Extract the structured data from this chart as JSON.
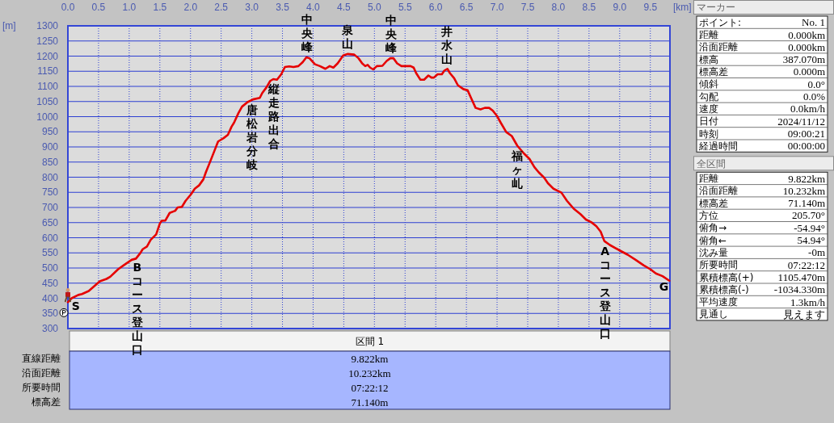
{
  "chart_data": [
    {
      "type": "line",
      "xlabel": "[km]",
      "ylabel": "[m]",
      "xlim": [
        0,
        9.82
      ],
      "ylim": [
        300,
        1300
      ],
      "xticks": [
        {
          "value": 0,
          "label": "0.0"
        },
        0.5,
        {
          "value": 1,
          "label": "1.0"
        },
        1.5,
        {
          "value": 2,
          "label": "2.0"
        },
        2.5,
        {
          "value": 3,
          "label": "3.0"
        },
        3.5,
        {
          "value": 4,
          "label": "4.0"
        },
        4.5,
        {
          "value": 5,
          "label": "5.0"
        },
        5.5,
        {
          "value": 6,
          "label": "6.0"
        },
        6.5,
        {
          "value": 7,
          "label": "7.0"
        },
        7.5,
        {
          "value": 8,
          "label": "8.0"
        },
        8.5,
        {
          "value": 9,
          "label": "9.0"
        },
        9.5
      ],
      "yticks": [
        300,
        350,
        400,
        450,
        500,
        550,
        600,
        650,
        700,
        750,
        800,
        850,
        900,
        950,
        1000,
        1050,
        1100,
        1150,
        1200,
        1250,
        1300
      ],
      "grid": true,
      "line_style": "solid",
      "x": [
        0,
        0.06,
        0.17,
        0.23,
        0.34,
        0.52,
        0.63,
        0.69,
        0.82,
        0.91,
        1.04,
        1.11,
        1.18,
        1.22,
        1.29,
        1.35,
        1.44,
        1.5,
        1.53,
        1.59,
        1.66,
        1.75,
        1.79,
        1.86,
        1.92,
        2.01,
        2.07,
        2.14,
        2.21,
        2.25,
        2.32,
        2.39,
        2.45,
        2.54,
        2.61,
        2.67,
        2.71,
        2.78,
        2.84,
        2.93,
        3.02,
        3.13,
        3.17,
        3.24,
        3.3,
        3.35,
        3.41,
        3.48,
        3.54,
        3.61,
        3.68,
        3.76,
        3.83,
        3.89,
        3.94,
        4.03,
        4.11,
        4.2,
        4.27,
        4.33,
        4.4,
        4.49,
        4.56,
        4.67,
        4.74,
        4.8,
        4.85,
        4.89,
        4.93,
        4.98,
        5.04,
        5.13,
        5.2,
        5.26,
        5.31,
        5.37,
        5.44,
        5.53,
        5.59,
        5.64,
        5.68,
        5.75,
        5.81,
        5.88,
        5.93,
        5.97,
        6.03,
        6.1,
        6.14,
        6.19,
        6.23,
        6.3,
        6.36,
        6.45,
        6.52,
        6.58,
        6.65,
        6.73,
        6.8,
        6.87,
        6.93,
        7,
        7.06,
        7.15,
        7.24,
        7.33,
        7.44,
        7.53,
        7.61,
        7.68,
        7.77,
        7.83,
        7.92,
        8.01,
        8.05,
        8.14,
        8.25,
        8.36,
        8.45,
        8.54,
        8.62,
        8.69,
        8.75,
        8.84,
        9,
        9.13,
        9.26,
        9.39,
        9.5,
        9.59,
        9.7,
        9.81
      ],
      "series": [
        {
          "color": "#e60000",
          "values": [
            387,
            400,
            411,
            414,
            424,
            456,
            464,
            471,
            496,
            509,
            527,
            531,
            549,
            562,
            571,
            593,
            611,
            647,
            656,
            657,
            682,
            689,
            700,
            702,
            722,
            744,
            762,
            773,
            793,
            816,
            851,
            887,
            918,
            929,
            940,
            967,
            980,
            1011,
            1033,
            1048,
            1057,
            1062,
            1078,
            1097,
            1118,
            1124,
            1122,
            1140,
            1164,
            1166,
            1164,
            1167,
            1180,
            1196,
            1193,
            1173,
            1167,
            1158,
            1167,
            1162,
            1176,
            1202,
            1207,
            1205,
            1193,
            1176,
            1167,
            1171,
            1162,
            1156,
            1167,
            1168,
            1184,
            1193,
            1193,
            1176,
            1167,
            1167,
            1167,
            1162,
            1144,
            1122,
            1122,
            1136,
            1129,
            1129,
            1140,
            1140,
            1152,
            1158,
            1144,
            1127,
            1104,
            1091,
            1087,
            1060,
            1029,
            1024,
            1029,
            1029,
            1020,
            1002,
            980,
            949,
            936,
            904,
            878,
            860,
            833,
            816,
            798,
            780,
            762,
            753,
            749,
            722,
            696,
            678,
            660,
            651,
            638,
            620,
            589,
            576,
            558,
            544,
            527,
            509,
            496,
            482,
            473,
            458
          ]
        }
      ],
      "annotations": [
        {
          "text": "S",
          "x": 0.13,
          "y": 407
        },
        {
          "text": "Bコース登山口",
          "x": 1.13,
          "y": 536
        },
        {
          "text": "唐松岩分岐",
          "x": 3.0,
          "y": 1055
        },
        {
          "text": "縦走路出合",
          "x": 3.36,
          "y": 1124
        },
        {
          "text": "中央峰",
          "x": 3.9,
          "y": 1196
        },
        {
          "text": "泉山",
          "x": 4.56,
          "y": 1207
        },
        {
          "text": "中央峰",
          "x": 5.27,
          "y": 1193
        },
        {
          "text": "井水山",
          "x": 6.18,
          "y": 1157
        },
        {
          "text": "福ヶ乢",
          "x": 7.33,
          "y": 904
        },
        {
          "text": "Aコース登山口",
          "x": 8.76,
          "y": 587
        },
        {
          "text": "G",
          "x": 9.72,
          "y": 471
        }
      ]
    },
    {
      "type": "other",
      "title": "区間 1",
      "annotations": [
        "直線距離",
        "9.822km",
        "沿面距離",
        "10.232km",
        "所要時間",
        "07:22:12",
        "標高差",
        "71.140m"
      ]
    },
    {
      "type": "other",
      "title": "マーカー",
      "annotations": [
        "ポイント:",
        "No. 1",
        "距離",
        "0.000km",
        "沿面距離",
        "0.000km",
        "標高",
        "387.070m",
        "標高差",
        "0.000m",
        "傾斜",
        "0.0°",
        "勾配",
        "0.0%",
        "速度",
        "0.0km/h",
        "日付",
        "2024/11/12",
        "時刻",
        "09:00:21",
        "経過時間",
        "00:00:00"
      ]
    },
    {
      "type": "other",
      "title": "全区間",
      "annotations": [
        "距離",
        "9.822km",
        "沿面距離",
        "10.232km",
        "標高差",
        "71.140m",
        "方位",
        "205.70°",
        "俯角→",
        "-54.94°",
        "俯角←",
        "54.94°",
        "沈み量",
        "-0m",
        "所要時間",
        "07:22:12",
        "累積標高(+)",
        "1105.470m",
        "累積標高(-)",
        "-1034.330m",
        "平均速度",
        "1.3km/h",
        "見通し",
        "見えます"
      ]
    }
  ]
}
